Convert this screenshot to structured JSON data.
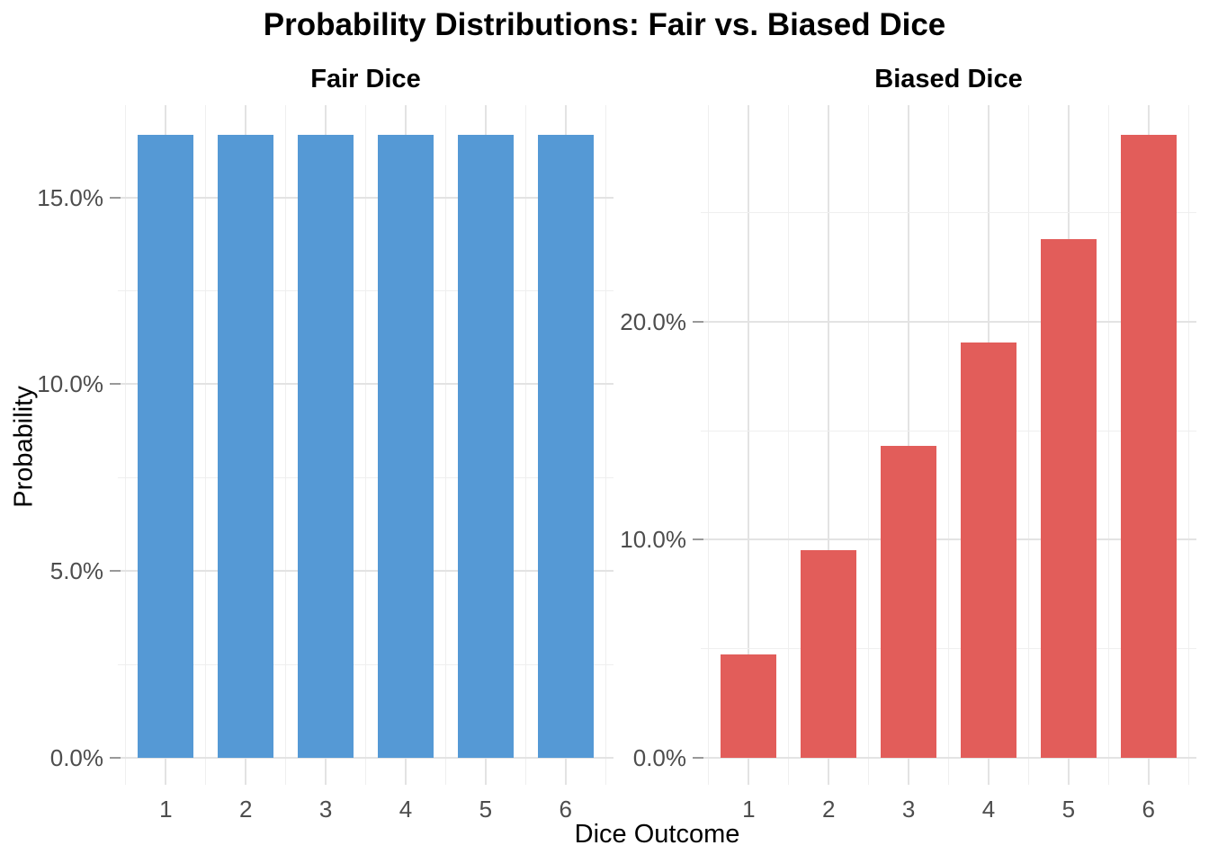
{
  "figure": {
    "title": "Probability Distributions: Fair vs. Biased Dice",
    "xlabel": "Dice Outcome",
    "ylabel": "Probability"
  },
  "colors": {
    "fair_bar": "#5599D5",
    "biased_bar": "#E25D5A",
    "grid_major": "#E3E3E3",
    "grid_minor": "#EFEFEF",
    "tick_label_text": "#4D4D4D",
    "tick_mark": "#999999",
    "title_text": "#000000",
    "background": "#FFFFFF"
  },
  "chart_data": [
    {
      "type": "bar",
      "title": "Fair Dice",
      "xlabel": "Dice Outcome",
      "ylabel": "Probability",
      "categories": [
        "1",
        "2",
        "3",
        "4",
        "5",
        "6"
      ],
      "values": [
        16.67,
        16.67,
        16.67,
        16.67,
        16.67,
        16.67
      ],
      "value_unit": "percent",
      "bar_color": "#5599D5",
      "ylim": [
        -0.72,
        17.47
      ],
      "y_ticks": [
        {
          "value": 0,
          "label": "0.0%"
        },
        {
          "value": 5,
          "label": "5.0%"
        },
        {
          "value": 10,
          "label": "10.0%"
        },
        {
          "value": 15,
          "label": "15.0%"
        }
      ],
      "y_minor_ticks": [
        2.5,
        7.5,
        12.5
      ],
      "grid": "major+minor",
      "legend": "none"
    },
    {
      "type": "bar",
      "title": "Biased Dice",
      "xlabel": "Dice Outcome",
      "ylabel": "Probability",
      "categories": [
        "1",
        "2",
        "3",
        "4",
        "5",
        "6"
      ],
      "values": [
        4.76,
        9.52,
        14.29,
        19.05,
        23.81,
        28.57
      ],
      "value_unit": "percent",
      "bar_color": "#E25D5A",
      "ylim": [
        -1.24,
        29.94
      ],
      "y_ticks": [
        {
          "value": 0,
          "label": "0.0%"
        },
        {
          "value": 10,
          "label": "10.0%"
        },
        {
          "value": 20,
          "label": "20.0%"
        }
      ],
      "y_minor_ticks": [
        5,
        15,
        25
      ],
      "grid": "major+minor",
      "legend": "none"
    }
  ]
}
